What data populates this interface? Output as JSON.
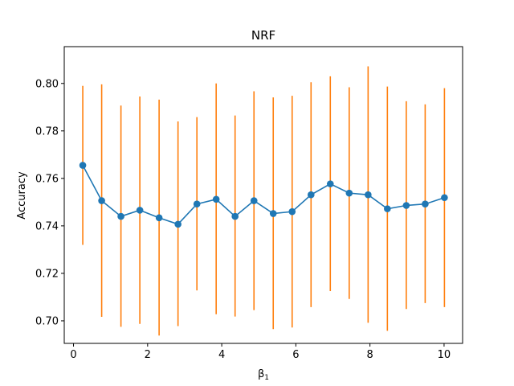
{
  "chart_data": {
    "type": "line",
    "title": "NRF",
    "xlabel": "β",
    "xlabel_subscript": "1",
    "ylabel": "Accuracy",
    "xlim": [
      -0.25,
      10.5
    ],
    "ylim": [
      0.6905,
      0.8155
    ],
    "xticks": [
      0,
      2,
      4,
      6,
      8,
      10
    ],
    "yticks": [
      0.7,
      0.72,
      0.74,
      0.76,
      0.78,
      0.8
    ],
    "grid": false,
    "legend": "none",
    "series": [
      {
        "color": "#1f77b4",
        "errorbar_color": "#ff7f0e",
        "marker": "circle",
        "points": [
          {
            "x": 0.25,
            "y": 0.7655,
            "ylow": 0.732,
            "yhigh": 0.799
          },
          {
            "x": 0.76,
            "y": 0.7506,
            "ylow": 0.7017,
            "yhigh": 0.7996
          },
          {
            "x": 1.28,
            "y": 0.744,
            "ylow": 0.6975,
            "yhigh": 0.7907
          },
          {
            "x": 1.79,
            "y": 0.7466,
            "ylow": 0.6987,
            "yhigh": 0.7945
          },
          {
            "x": 2.31,
            "y": 0.7434,
            "ylow": 0.6938,
            "yhigh": 0.7932
          },
          {
            "x": 2.82,
            "y": 0.7407,
            "ylow": 0.6978,
            "yhigh": 0.784
          },
          {
            "x": 3.33,
            "y": 0.7492,
            "ylow": 0.7128,
            "yhigh": 0.7858
          },
          {
            "x": 3.85,
            "y": 0.7512,
            "ylow": 0.7028,
            "yhigh": 0.8
          },
          {
            "x": 4.36,
            "y": 0.744,
            "ylow": 0.7018,
            "yhigh": 0.7865
          },
          {
            "x": 4.87,
            "y": 0.7506,
            "ylow": 0.7045,
            "yhigh": 0.7967
          },
          {
            "x": 5.39,
            "y": 0.7452,
            "ylow": 0.6965,
            "yhigh": 0.7941
          },
          {
            "x": 5.9,
            "y": 0.746,
            "ylow": 0.6972,
            "yhigh": 0.7948
          },
          {
            "x": 6.41,
            "y": 0.7531,
            "ylow": 0.7058,
            "yhigh": 0.8005
          },
          {
            "x": 6.93,
            "y": 0.7577,
            "ylow": 0.7125,
            "yhigh": 0.803
          },
          {
            "x": 7.44,
            "y": 0.7538,
            "ylow": 0.7092,
            "yhigh": 0.7984
          },
          {
            "x": 7.95,
            "y": 0.7531,
            "ylow": 0.6992,
            "yhigh": 0.8072
          },
          {
            "x": 8.47,
            "y": 0.7472,
            "ylow": 0.6958,
            "yhigh": 0.7987
          },
          {
            "x": 8.98,
            "y": 0.7486,
            "ylow": 0.705,
            "yhigh": 0.7925
          },
          {
            "x": 9.49,
            "y": 0.7492,
            "ylow": 0.7075,
            "yhigh": 0.7912
          },
          {
            "x": 10.01,
            "y": 0.7519,
            "ylow": 0.7058,
            "yhigh": 0.798
          }
        ]
      }
    ]
  }
}
